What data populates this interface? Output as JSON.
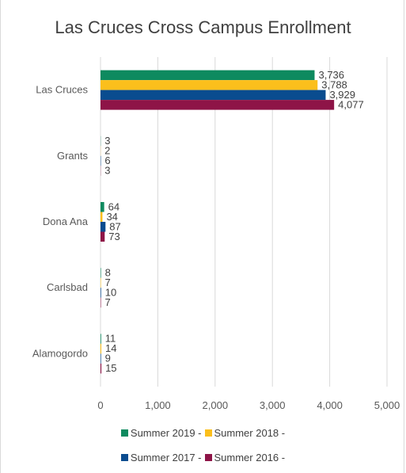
{
  "chart_data": {
    "type": "bar",
    "orientation": "horizontal",
    "title": "Las Cruces Cross Campus Enrollment",
    "categories": [
      "Las Cruces",
      "Grants",
      "Dona Ana",
      "Carlsbad",
      "Alamogordo"
    ],
    "series": [
      {
        "name": "Summer 2019 -",
        "color": "#0e8a5f",
        "values": [
          3736,
          3,
          64,
          8,
          11
        ],
        "labels": [
          "3,736",
          "3",
          "64",
          "8",
          "11"
        ]
      },
      {
        "name": "Summer 2018 -",
        "color": "#fbbf1c",
        "values": [
          3788,
          2,
          34,
          7,
          14
        ],
        "labels": [
          "3,788",
          "2",
          "34",
          "7",
          "14"
        ]
      },
      {
        "name": "Summer 2017 -",
        "color": "#0a4c8f",
        "values": [
          3929,
          6,
          87,
          10,
          9
        ],
        "labels": [
          "3,929",
          "6",
          "87",
          "10",
          "9"
        ]
      },
      {
        "name": "Summer 2016 -",
        "color": "#8e1447",
        "values": [
          4077,
          3,
          73,
          7,
          15
        ],
        "labels": [
          "4,077",
          "3",
          "73",
          "7",
          "15"
        ]
      }
    ],
    "xticks": [
      "0",
      "1,000",
      "2,000",
      "3,000",
      "4,000",
      "5,000"
    ],
    "xlim": [
      0,
      5000
    ],
    "grid": true,
    "legend_position": "bottom"
  }
}
